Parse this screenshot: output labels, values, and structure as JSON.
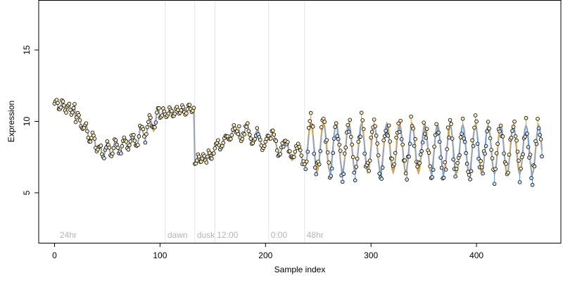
{
  "chart_data": {
    "type": "scatter",
    "title": "",
    "xlabel": "Sample index",
    "ylabel": "Expression",
    "xlim": [
      -15,
      480
    ],
    "ylim": [
      1.5,
      18.5
    ],
    "x_ticks": [
      0,
      100,
      200,
      300,
      400
    ],
    "y_ticks": [
      5,
      10,
      15
    ],
    "grid": false,
    "legend": "none",
    "colors": {
      "point_fill_default": "#f5e6b8",
      "point_fill_cool": "#c9dcf2",
      "point_stroke": "#000000",
      "up_segment": "#f5a623",
      "down_segment": "#6a9bd8",
      "smooth_line": "#9aa4b6",
      "annotation_line": "#e4e4e4",
      "annotation_text": "#b5b5b5"
    },
    "annotations": [
      {
        "x": 3,
        "label": "24hr",
        "line": false
      },
      {
        "x": 105,
        "label": "dawn",
        "line": true
      },
      {
        "x": 133,
        "label": "dusk",
        "line": true
      },
      {
        "x": 152,
        "label": "12:00",
        "line": true
      },
      {
        "x": 203,
        "label": "0:00",
        "line": true
      },
      {
        "x": 237,
        "label": "48hr",
        "line": true
      }
    ],
    "series": [
      {
        "segments": [
          {
            "range": [
              0,
              20
            ],
            "baseline": [
              11.2,
              10.8
            ],
            "wiggle": 0.35,
            "period": 6
          },
          {
            "range": [
              20,
              45
            ],
            "baseline": [
              10.4,
              7.9
            ],
            "wiggle": 0.4,
            "period": 7
          },
          {
            "range": [
              45,
              75
            ],
            "baseline": [
              7.9,
              8.6
            ],
            "wiggle": 0.5,
            "period": 8
          },
          {
            "range": [
              75,
              100
            ],
            "baseline": [
              8.6,
              10.3
            ],
            "wiggle": 0.6,
            "period": 8
          },
          {
            "range": [
              100,
              133
            ],
            "baseline": [
              10.5,
              10.9
            ],
            "wiggle": 0.3,
            "period": 6
          },
          {
            "range": [
              133,
              150
            ],
            "baseline": [
              7.3,
              7.6
            ],
            "wiggle": 0.3,
            "period": 5
          },
          {
            "range": [
              150,
              175
            ],
            "baseline": [
              8.0,
              9.5
            ],
            "wiggle": 0.35,
            "period": 8
          },
          {
            "range": [
              175,
              205
            ],
            "baseline": [
              9.4,
              8.4
            ],
            "wiggle": 0.6,
            "period": 10
          },
          {
            "range": [
              205,
              240
            ],
            "baseline": [
              8.6,
              7.4
            ],
            "wiggle": 0.6,
            "period": 12
          },
          {
            "range": [
              240,
              463
            ],
            "baseline": [
              8.2,
              8.0
            ],
            "wiggle": 1.7,
            "period": 12
          }
        ]
      }
    ]
  }
}
